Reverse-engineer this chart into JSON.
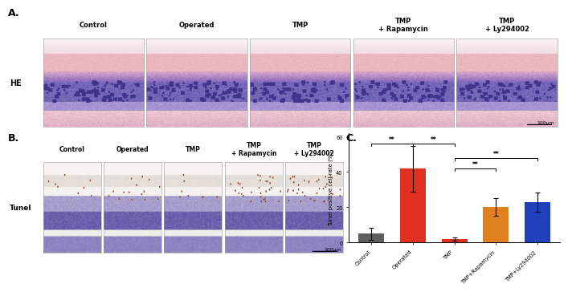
{
  "panel_labels": [
    "A.",
    "B.",
    "C."
  ],
  "bar_categories": [
    "Control",
    "Operated",
    "TMP",
    "TMP+Rapamycin",
    "TMP+Ly294002"
  ],
  "bar_values": [
    5.0,
    42.0,
    2.0,
    20.0,
    23.0
  ],
  "bar_errors": [
    3.5,
    13.0,
    1.0,
    5.0,
    5.5
  ],
  "bar_colors": [
    "#606060",
    "#e03020",
    "#e03020",
    "#e08020",
    "#2040bb"
  ],
  "ylabel": "Tunel positive cell rate (%)",
  "ylim": [
    0,
    62
  ],
  "yticks": [
    0,
    20,
    40,
    60
  ],
  "col_labels_A": [
    "Control",
    "Operated",
    "TMP",
    "TMP\n+ Rapamycin",
    "TMP\n+ Ly294002"
  ],
  "col_labels_B": [
    "Control",
    "Operated",
    "TMP",
    "TMP\n+ Rapamycin",
    "TMP\n+ Ly294002"
  ],
  "row_label_A": "HE",
  "row_label_B": "Tunel",
  "scale_bar_text": "100μm",
  "background_color": "#ffffff",
  "he_layer_colors": {
    "top_pink": "#f0c8c8",
    "upper_mid_pink": "#e8b0b8",
    "purple_dense": "#5858a0",
    "purple_light": "#8888c0",
    "bottom_pink": "#e8c0c8"
  },
  "tunel_layer_colors": {
    "top_white": "#f5f2f0",
    "upper_sparse": "#e8e0d8",
    "mid_blue_dense": "#7878aa",
    "mid_blue_light": "#a0a0c8",
    "lower_white": "#f0eee8",
    "bottom_blue": "#6868a0"
  }
}
